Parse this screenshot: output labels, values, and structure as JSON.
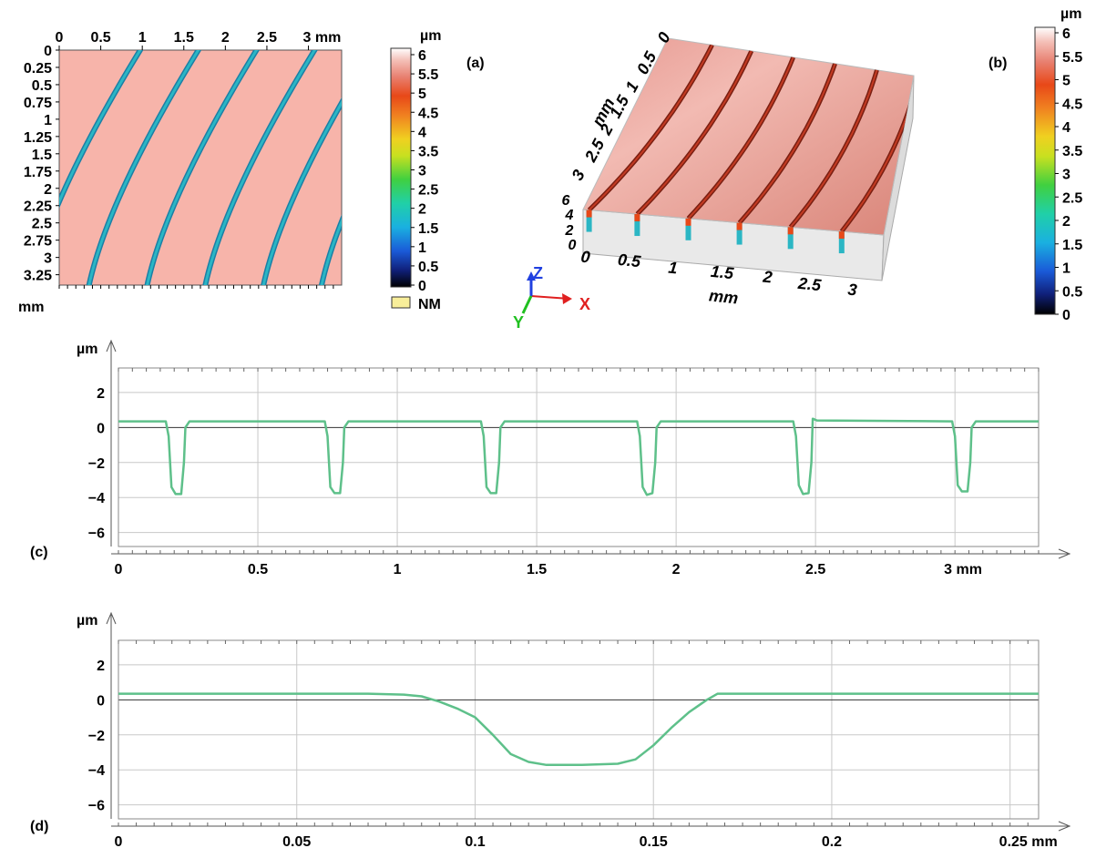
{
  "panels": {
    "a": {
      "label": "(a)",
      "unit_x": "mm",
      "unit_y": "mm"
    },
    "b": {
      "label": "(b)",
      "unit_axis": "mm"
    },
    "c": {
      "label": "(c)",
      "unit_y": "µm",
      "unit_x": "mm"
    },
    "d": {
      "label": "(d)",
      "unit_y": "µm",
      "unit_x": "mm"
    }
  },
  "colorbar_unit": "µm",
  "nm_legend": "NM",
  "axis_triad": {
    "x": "X",
    "y": "Y",
    "z": "Z"
  },
  "colors": {
    "surface": "#f7b4aa",
    "groove": "#2bb6c4",
    "profile": "#5ec08a",
    "grid": "#c8c8c8"
  },
  "chart_data": [
    {
      "panel": "(a)",
      "type": "heatmap",
      "description_of_content": "top-view height map with diagonal curved grooves",
      "x_ticks": [
        "0",
        "0.5",
        "1",
        "1.5",
        "2",
        "2.5",
        "3 mm"
      ],
      "y_ticks": [
        "0",
        "0.25",
        "0.5",
        "0.75",
        "1",
        "1.25",
        "1.5",
        "1.75",
        "2",
        "2.25",
        "2.5",
        "2.75",
        "3",
        "3.25"
      ],
      "xlim": [
        0,
        3.4
      ],
      "ylim": [
        0,
        3.4
      ],
      "colorbar": {
        "unit": "µm",
        "range": [
          0,
          6
        ],
        "ticks": [
          "6",
          "5.5",
          "5",
          "4.5",
          "4",
          "3.5",
          "3",
          "2.5",
          "2",
          "1.5",
          "1",
          "0.5",
          "0"
        ]
      },
      "legend": [
        "NM"
      ]
    },
    {
      "panel": "(b)",
      "type": "heatmap",
      "view": "3D surface",
      "x_ticks": [
        "0",
        "0.5",
        "1",
        "1.5",
        "2",
        "2.5",
        "3"
      ],
      "y_ticks": [
        "0",
        "0.5",
        "1",
        "1.5",
        "2",
        "2.5",
        "3"
      ],
      "z_ticks": [
        "0",
        "2",
        "4",
        "6"
      ],
      "colorbar": {
        "unit": "µm",
        "range": [
          0,
          6
        ],
        "ticks": [
          "6",
          "5.5",
          "5",
          "4.5",
          "4",
          "3.5",
          "3",
          "2.5",
          "2",
          "1.5",
          "1",
          "0.5",
          "0"
        ]
      }
    },
    {
      "panel": "(c)",
      "type": "line",
      "x_ticks": [
        "0",
        "0.5",
        "1",
        "1.5",
        "2",
        "2.5",
        "3 mm"
      ],
      "y_ticks": [
        "2",
        "0",
        "−2",
        "−4",
        "−6"
      ],
      "ylabel": "µm",
      "xlim": [
        0,
        3.3
      ],
      "ylim": [
        -6.8,
        3.4
      ],
      "grid": true,
      "series": [
        {
          "x": [
            0,
            0.17,
            0.18,
            0.19,
            0.205,
            0.225,
            0.235,
            0.24,
            0.255,
            0.74,
            0.75,
            0.76,
            0.775,
            0.795,
            0.805,
            0.81,
            0.825,
            1.3,
            1.31,
            1.32,
            1.335,
            1.355,
            1.365,
            1.37,
            1.385,
            1.86,
            1.87,
            1.88,
            1.895,
            1.915,
            1.925,
            1.93,
            1.945,
            2.42,
            2.43,
            2.44,
            2.455,
            2.475,
            2.485,
            2.49,
            2.505,
            2.99,
            3.0,
            3.01,
            3.025,
            3.045,
            3.055,
            3.06,
            3.075,
            3.3
          ],
          "y": [
            0.35,
            0.35,
            -0.5,
            -3.4,
            -3.8,
            -3.8,
            -2,
            0,
            0.35,
            0.35,
            -0.5,
            -3.4,
            -3.75,
            -3.75,
            -2,
            0,
            0.35,
            0.35,
            -0.5,
            -3.4,
            -3.75,
            -3.75,
            -2,
            0,
            0.35,
            0.35,
            -0.5,
            -3.4,
            -3.85,
            -3.75,
            -2,
            0,
            0.35,
            0.35,
            -0.5,
            -3.3,
            -3.8,
            -3.75,
            -2,
            0.5,
            0.4,
            0.35,
            -0.5,
            -3.3,
            -3.65,
            -3.65,
            -2,
            0,
            0.35,
            0.35
          ]
        }
      ]
    },
    {
      "panel": "(d)",
      "type": "line",
      "x_ticks": [
        "0",
        "0.05",
        "0.1",
        "0.15",
        "0.2",
        "0.25 mm"
      ],
      "y_ticks": [
        "2",
        "0",
        "−2",
        "−4",
        "−6"
      ],
      "ylabel": "µm",
      "xlim": [
        0,
        0.258
      ],
      "ylim": [
        -6.8,
        3.4
      ],
      "grid": true,
      "series": [
        {
          "x": [
            0,
            0.02,
            0.05,
            0.07,
            0.08,
            0.085,
            0.09,
            0.095,
            0.1,
            0.105,
            0.11,
            0.115,
            0.12,
            0.13,
            0.14,
            0.145,
            0.15,
            0.155,
            0.16,
            0.165,
            0.168,
            0.175,
            0.2,
            0.258
          ],
          "y": [
            0.35,
            0.35,
            0.35,
            0.35,
            0.3,
            0.2,
            -0.1,
            -0.5,
            -1.0,
            -2.0,
            -3.1,
            -3.55,
            -3.72,
            -3.72,
            -3.65,
            -3.4,
            -2.6,
            -1.6,
            -0.7,
            0.0,
            0.35,
            0.35,
            0.35,
            0.35
          ]
        }
      ]
    }
  ]
}
